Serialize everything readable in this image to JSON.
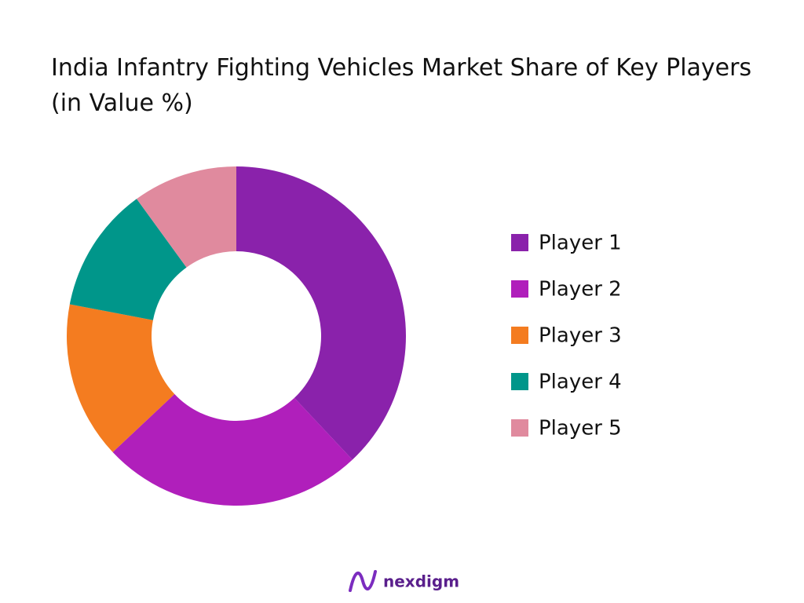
{
  "chart_data": {
    "type": "donut",
    "title": "India Infantry Fighting Vehicles Market Share of Key Players (in Value %)",
    "categories": [
      "Player 1",
      "Player 2",
      "Player 3",
      "Player 4",
      "Player 5"
    ],
    "values": [
      38,
      25,
      15,
      12,
      10
    ],
    "colors": [
      "#8a22ab",
      "#b01fbb",
      "#f47c20",
      "#00968a",
      "#e08a9e"
    ],
    "legend": "right"
  },
  "footer": {
    "logo": "nexdigm"
  }
}
